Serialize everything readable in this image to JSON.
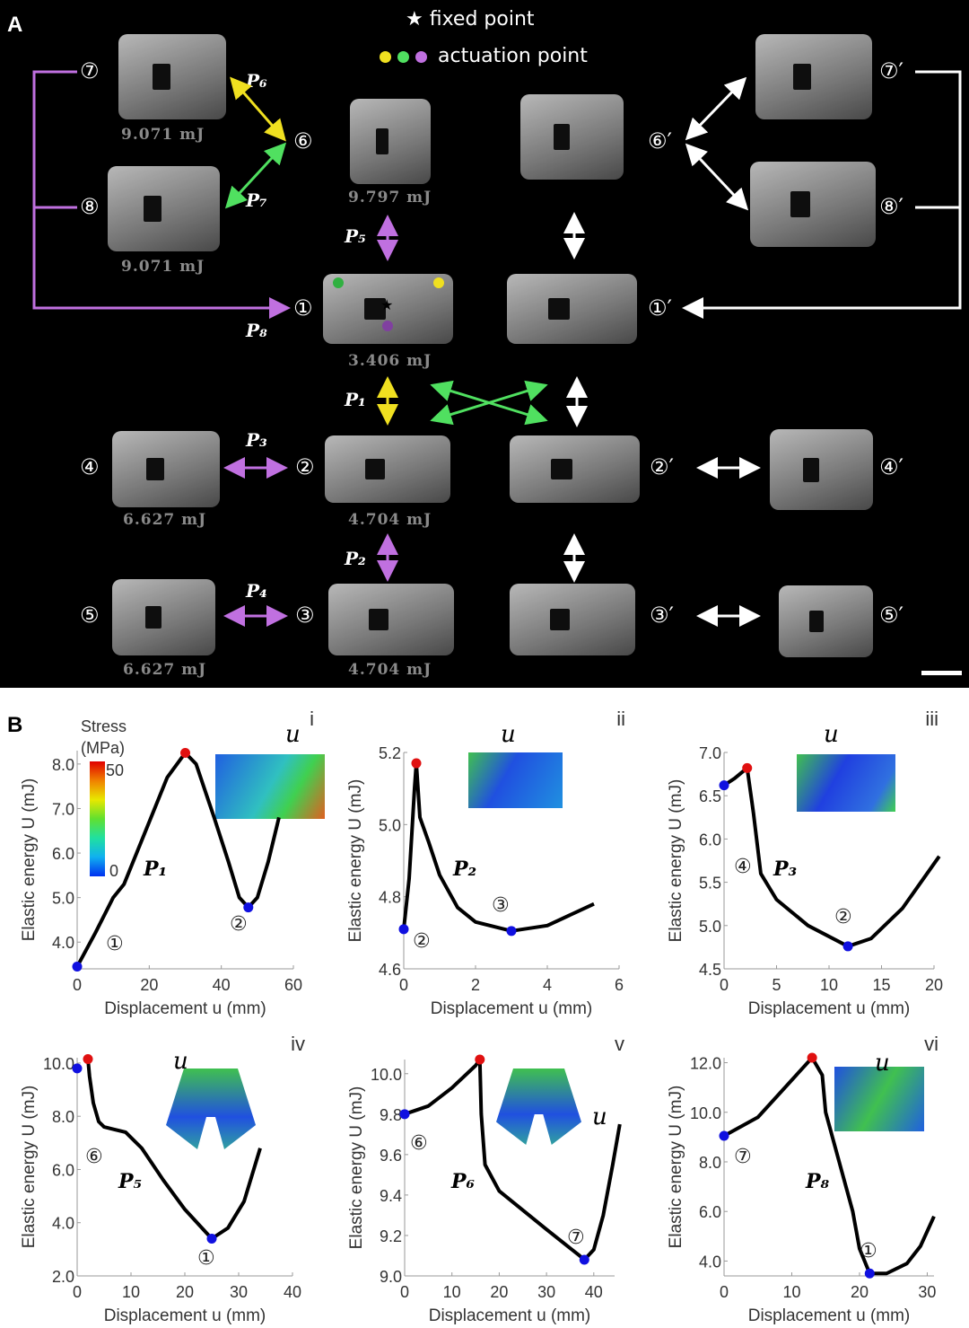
{
  "panel_a": {
    "letter": "A",
    "legend_fixed": "★  fixed point",
    "legend_actuation": "actuation point",
    "actuation_colors": [
      "#f0e020",
      "#50e060",
      "#c070e0"
    ],
    "colors": {
      "purple": "#c070e0",
      "yellow": "#f0e020",
      "green": "#50e060",
      "white": "#ffffff"
    },
    "energies": {
      "s7": "9.071 mJ",
      "s8": "9.071 mJ",
      "s6": "9.797 mJ",
      "s1": "3.406 mJ",
      "s4": "6.627 mJ",
      "s2": "4.704 mJ",
      "s5": "6.627 mJ",
      "s3": "4.704 mJ"
    },
    "states": {
      "s1": "①",
      "s2": "②",
      "s3": "③",
      "s4": "④",
      "s5": "⑤",
      "s6": "⑥",
      "s7": "⑦",
      "s8": "⑧",
      "p1": "①′",
      "p2": "②′",
      "p3": "③′",
      "p4": "④′",
      "p5": "⑤′",
      "p6": "⑥′",
      "p7": "⑦′",
      "p8": "⑧′"
    },
    "paths": {
      "P1": "P₁",
      "P2": "P₂",
      "P3": "P₃",
      "P4": "P₄",
      "P5": "P₅",
      "P6": "P₆",
      "P7": "P₇",
      "P8": "P₈"
    }
  },
  "panel_b": {
    "letter": "B",
    "colorbar_title": "Stress\n(MPa)",
    "colorbar_max": "50",
    "colorbar_min": "0"
  },
  "chart_data": [
    {
      "id": "i",
      "type": "line",
      "xlabel": "Displacement u (mm)",
      "ylabel": "Elastic energy U (mJ)",
      "xlim": [
        0,
        60
      ],
      "ylim": [
        3.4,
        8.3
      ],
      "xticks": [
        0,
        20,
        40,
        60
      ],
      "yticks": [
        4.0,
        5.0,
        6.0,
        7.0,
        8.0
      ],
      "ytick_labels": [
        "4.0",
        "5.0",
        "6.0",
        "7.0",
        "8.0"
      ],
      "x": [
        0,
        5,
        10,
        13,
        20,
        25,
        30,
        33,
        38,
        42,
        45,
        47.5,
        50,
        53,
        56
      ],
      "y": [
        3.45,
        4.2,
        5.0,
        5.3,
        6.7,
        7.7,
        8.25,
        8.0,
        6.8,
        5.8,
        5.0,
        4.78,
        5.0,
        5.8,
        6.8
      ],
      "peak": [
        30,
        8.25
      ],
      "minima": [
        [
          0,
          3.45
        ],
        [
          47.5,
          4.78
        ]
      ],
      "path_label": "P₁",
      "annotations": [
        "①",
        "②"
      ],
      "panel_label": "i",
      "force_label": "u"
    },
    {
      "id": "ii",
      "type": "line",
      "xlabel": "Displacement u (mm)",
      "ylabel": "Elastic energy U (mJ)",
      "xlim": [
        0,
        6
      ],
      "ylim": [
        4.6,
        5.2
      ],
      "xticks": [
        0,
        2,
        4,
        6
      ],
      "yticks": [
        4.6,
        4.8,
        5.0,
        5.2
      ],
      "ytick_labels": [
        "4.6",
        "4.8",
        "5.0",
        "5.2"
      ],
      "x": [
        0,
        0.15,
        0.3,
        0.35,
        0.45,
        0.7,
        1,
        1.5,
        2,
        3,
        4,
        5.3
      ],
      "y": [
        4.71,
        4.85,
        5.1,
        5.17,
        5.02,
        4.95,
        4.86,
        4.77,
        4.73,
        4.705,
        4.72,
        4.78
      ],
      "peak": [
        0.35,
        5.17
      ],
      "minima": [
        [
          0,
          4.71
        ],
        [
          3,
          4.705
        ]
      ],
      "path_label": "P₂",
      "annotations": [
        "②",
        "③"
      ],
      "panel_label": "ii",
      "force_label": "u"
    },
    {
      "id": "iii",
      "type": "line",
      "xlabel": "Displacement u (mm)",
      "ylabel": "Elastic energy U (mJ)",
      "xlim": [
        0,
        20
      ],
      "ylim": [
        4.5,
        7.0
      ],
      "xticks": [
        0,
        5,
        10,
        15,
        20
      ],
      "yticks": [
        4.5,
        5.0,
        5.5,
        6.0,
        6.5,
        7.0
      ],
      "ytick_labels": [
        "4.5",
        "5.0",
        "5.5",
        "6.0",
        "6.5",
        "7.0"
      ],
      "x": [
        0,
        1,
        2.2,
        2.8,
        3.5,
        5,
        8,
        11.8,
        14,
        17,
        20.5
      ],
      "y": [
        6.62,
        6.7,
        6.82,
        6.3,
        5.6,
        5.3,
        5.0,
        4.76,
        4.85,
        5.2,
        5.8
      ],
      "peak": [
        2.2,
        6.82
      ],
      "minima": [
        [
          0,
          6.62
        ],
        [
          11.8,
          4.76
        ]
      ],
      "path_label": "P₃",
      "annotations": [
        "④",
        "②"
      ],
      "panel_label": "iii",
      "force_label": "u"
    },
    {
      "id": "iv",
      "type": "line",
      "xlabel": "Displacement u (mm)",
      "ylabel": "Elastic energy U (mJ)",
      "xlim": [
        0,
        40
      ],
      "ylim": [
        2.0,
        10.2
      ],
      "xticks": [
        0,
        10,
        20,
        30,
        40
      ],
      "yticks": [
        2,
        4,
        6,
        8,
        10
      ],
      "ytick_labels": [
        "2.0",
        "4.0",
        "6.0",
        "8.0",
        "10.0"
      ],
      "x": [
        2,
        2.3,
        3,
        4,
        5,
        9,
        12,
        16,
        20,
        25,
        28,
        31,
        34
      ],
      "y": [
        10.15,
        9.5,
        8.5,
        7.8,
        7.6,
        7.4,
        6.8,
        5.6,
        4.5,
        3.4,
        3.8,
        4.8,
        6.8
      ],
      "peak": [
        2,
        10.15
      ],
      "minima": [
        [
          0,
          9.8
        ],
        [
          25,
          3.4
        ]
      ],
      "path_label": "P₅",
      "annotations": [
        "⑥",
        "①"
      ],
      "panel_label": "iv",
      "force_label": "u"
    },
    {
      "id": "v",
      "type": "line",
      "xlabel": "Displacement u (mm)",
      "ylabel": "Elastic energy U (mJ)",
      "xlim": [
        0,
        44.4
      ],
      "ylim": [
        9.0,
        10.07
      ],
      "xticks": [
        0,
        10,
        20,
        30,
        40
      ],
      "yticks": [
        9.0,
        9.2,
        9.4,
        9.6,
        9.8,
        10.0
      ],
      "ytick_labels": [
        "9.0",
        "9.2",
        "9.4",
        "9.6",
        "9.8",
        "10.0"
      ],
      "x": [
        0,
        5,
        10,
        15,
        15.9,
        16.2,
        17,
        20,
        30,
        37,
        38,
        40,
        42,
        44,
        45.5
      ],
      "y": [
        9.8,
        9.84,
        9.93,
        10.04,
        10.07,
        9.8,
        9.55,
        9.42,
        9.23,
        9.1,
        9.08,
        9.13,
        9.3,
        9.55,
        9.75
      ],
      "peak": [
        15.9,
        10.07
      ],
      "minima": [
        [
          0,
          9.8
        ],
        [
          38,
          9.08
        ]
      ],
      "path_label": "P₆",
      "annotations": [
        "⑥",
        "⑦"
      ],
      "panel_label": "v",
      "force_label": "u"
    },
    {
      "id": "vi",
      "type": "line",
      "xlabel": "Displacement u (mm)",
      "ylabel": "Elastic energy U (mJ)",
      "xlim": [
        0,
        31
      ],
      "ylim": [
        3.4,
        12.2
      ],
      "xticks": [
        0,
        10,
        20,
        30
      ],
      "yticks": [
        4,
        6,
        8,
        10,
        12
      ],
      "ytick_labels": [
        "4.0",
        "6.0",
        "8.0",
        "10.0",
        "12.0"
      ],
      "x": [
        0,
        5,
        10,
        13,
        14.5,
        15,
        17,
        19,
        20,
        21.5,
        24,
        27,
        29,
        31
      ],
      "y": [
        9.05,
        9.8,
        11.3,
        12.2,
        11.5,
        10,
        8,
        6,
        4.5,
        3.5,
        3.5,
        3.9,
        4.6,
        5.8
      ],
      "peak": [
        13,
        12.2
      ],
      "minima": [
        [
          0,
          9.05
        ],
        [
          21.5,
          3.5
        ]
      ],
      "path_label": "P₈",
      "annotations": [
        "⑦",
        "①"
      ],
      "panel_label": "vi",
      "force_label": "u"
    }
  ]
}
